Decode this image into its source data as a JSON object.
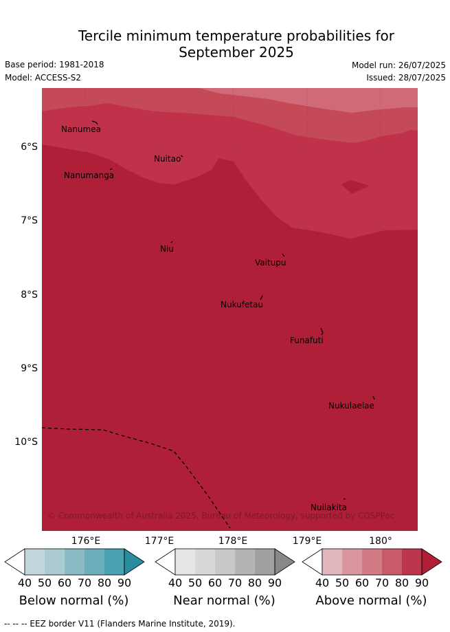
{
  "title": {
    "line1": "Tercile minimum temperature probabilities for",
    "line2": "September 2025"
  },
  "meta": {
    "base_period": "Base period: 1981-2018",
    "model": "Model: ACCESS-S2",
    "model_run": "Model run: 26/07/2025",
    "issued": "Issued: 28/07/2025"
  },
  "map": {
    "lon_labels": [
      "176°E",
      "177°E",
      "178°E",
      "179°E",
      "180°"
    ],
    "lat_labels": [
      "6°S",
      "7°S",
      "8°S",
      "9°S",
      "10°S"
    ],
    "islands": [
      {
        "name": "Nanumea"
      },
      {
        "name": "Nuitao"
      },
      {
        "name": "Nanumanga"
      },
      {
        "name": "Niu"
      },
      {
        "name": "Vaitupu"
      },
      {
        "name": "Nukufetau"
      },
      {
        "name": "Funafuti"
      },
      {
        "name": "Nukulaelae"
      },
      {
        "name": "Nuilakita"
      }
    ],
    "credit": "© Commonwealth of Australia 2025, Bureau of Meteorology, supported by COSPPac",
    "colors": {
      "above_90": "#b01f38",
      "above_80": "#bf3249",
      "above_70": "#c9525f",
      "above_60": "#cf6a76"
    }
  },
  "legends": [
    {
      "label": "Below normal (%)",
      "ticks": [
        "40",
        "50",
        "60",
        "70",
        "80",
        "90"
      ],
      "colors": [
        "#c0d6dc",
        "#a9cbd1",
        "#8bbac5",
        "#6daebb",
        "#48a0b0",
        "#2a8c9f"
      ]
    },
    {
      "label": "Near normal (%)",
      "ticks": [
        "40",
        "50",
        "60",
        "70",
        "80",
        "90"
      ],
      "colors": [
        "#e6e6e6",
        "#d8d8d8",
        "#c8c8c8",
        "#b4b4b4",
        "#a0a0a0",
        "#888888"
      ]
    },
    {
      "label": "Above normal (%)",
      "ticks": [
        "40",
        "50",
        "60",
        "70",
        "80",
        "90"
      ],
      "colors": [
        "#e2b7bd",
        "#d9969f",
        "#d27b85",
        "#c95a68",
        "#bc354b",
        "#b01f38"
      ]
    }
  ],
  "footnote": "--  --  -- EEZ border V11 (Flanders Marine Institute, 2019)."
}
